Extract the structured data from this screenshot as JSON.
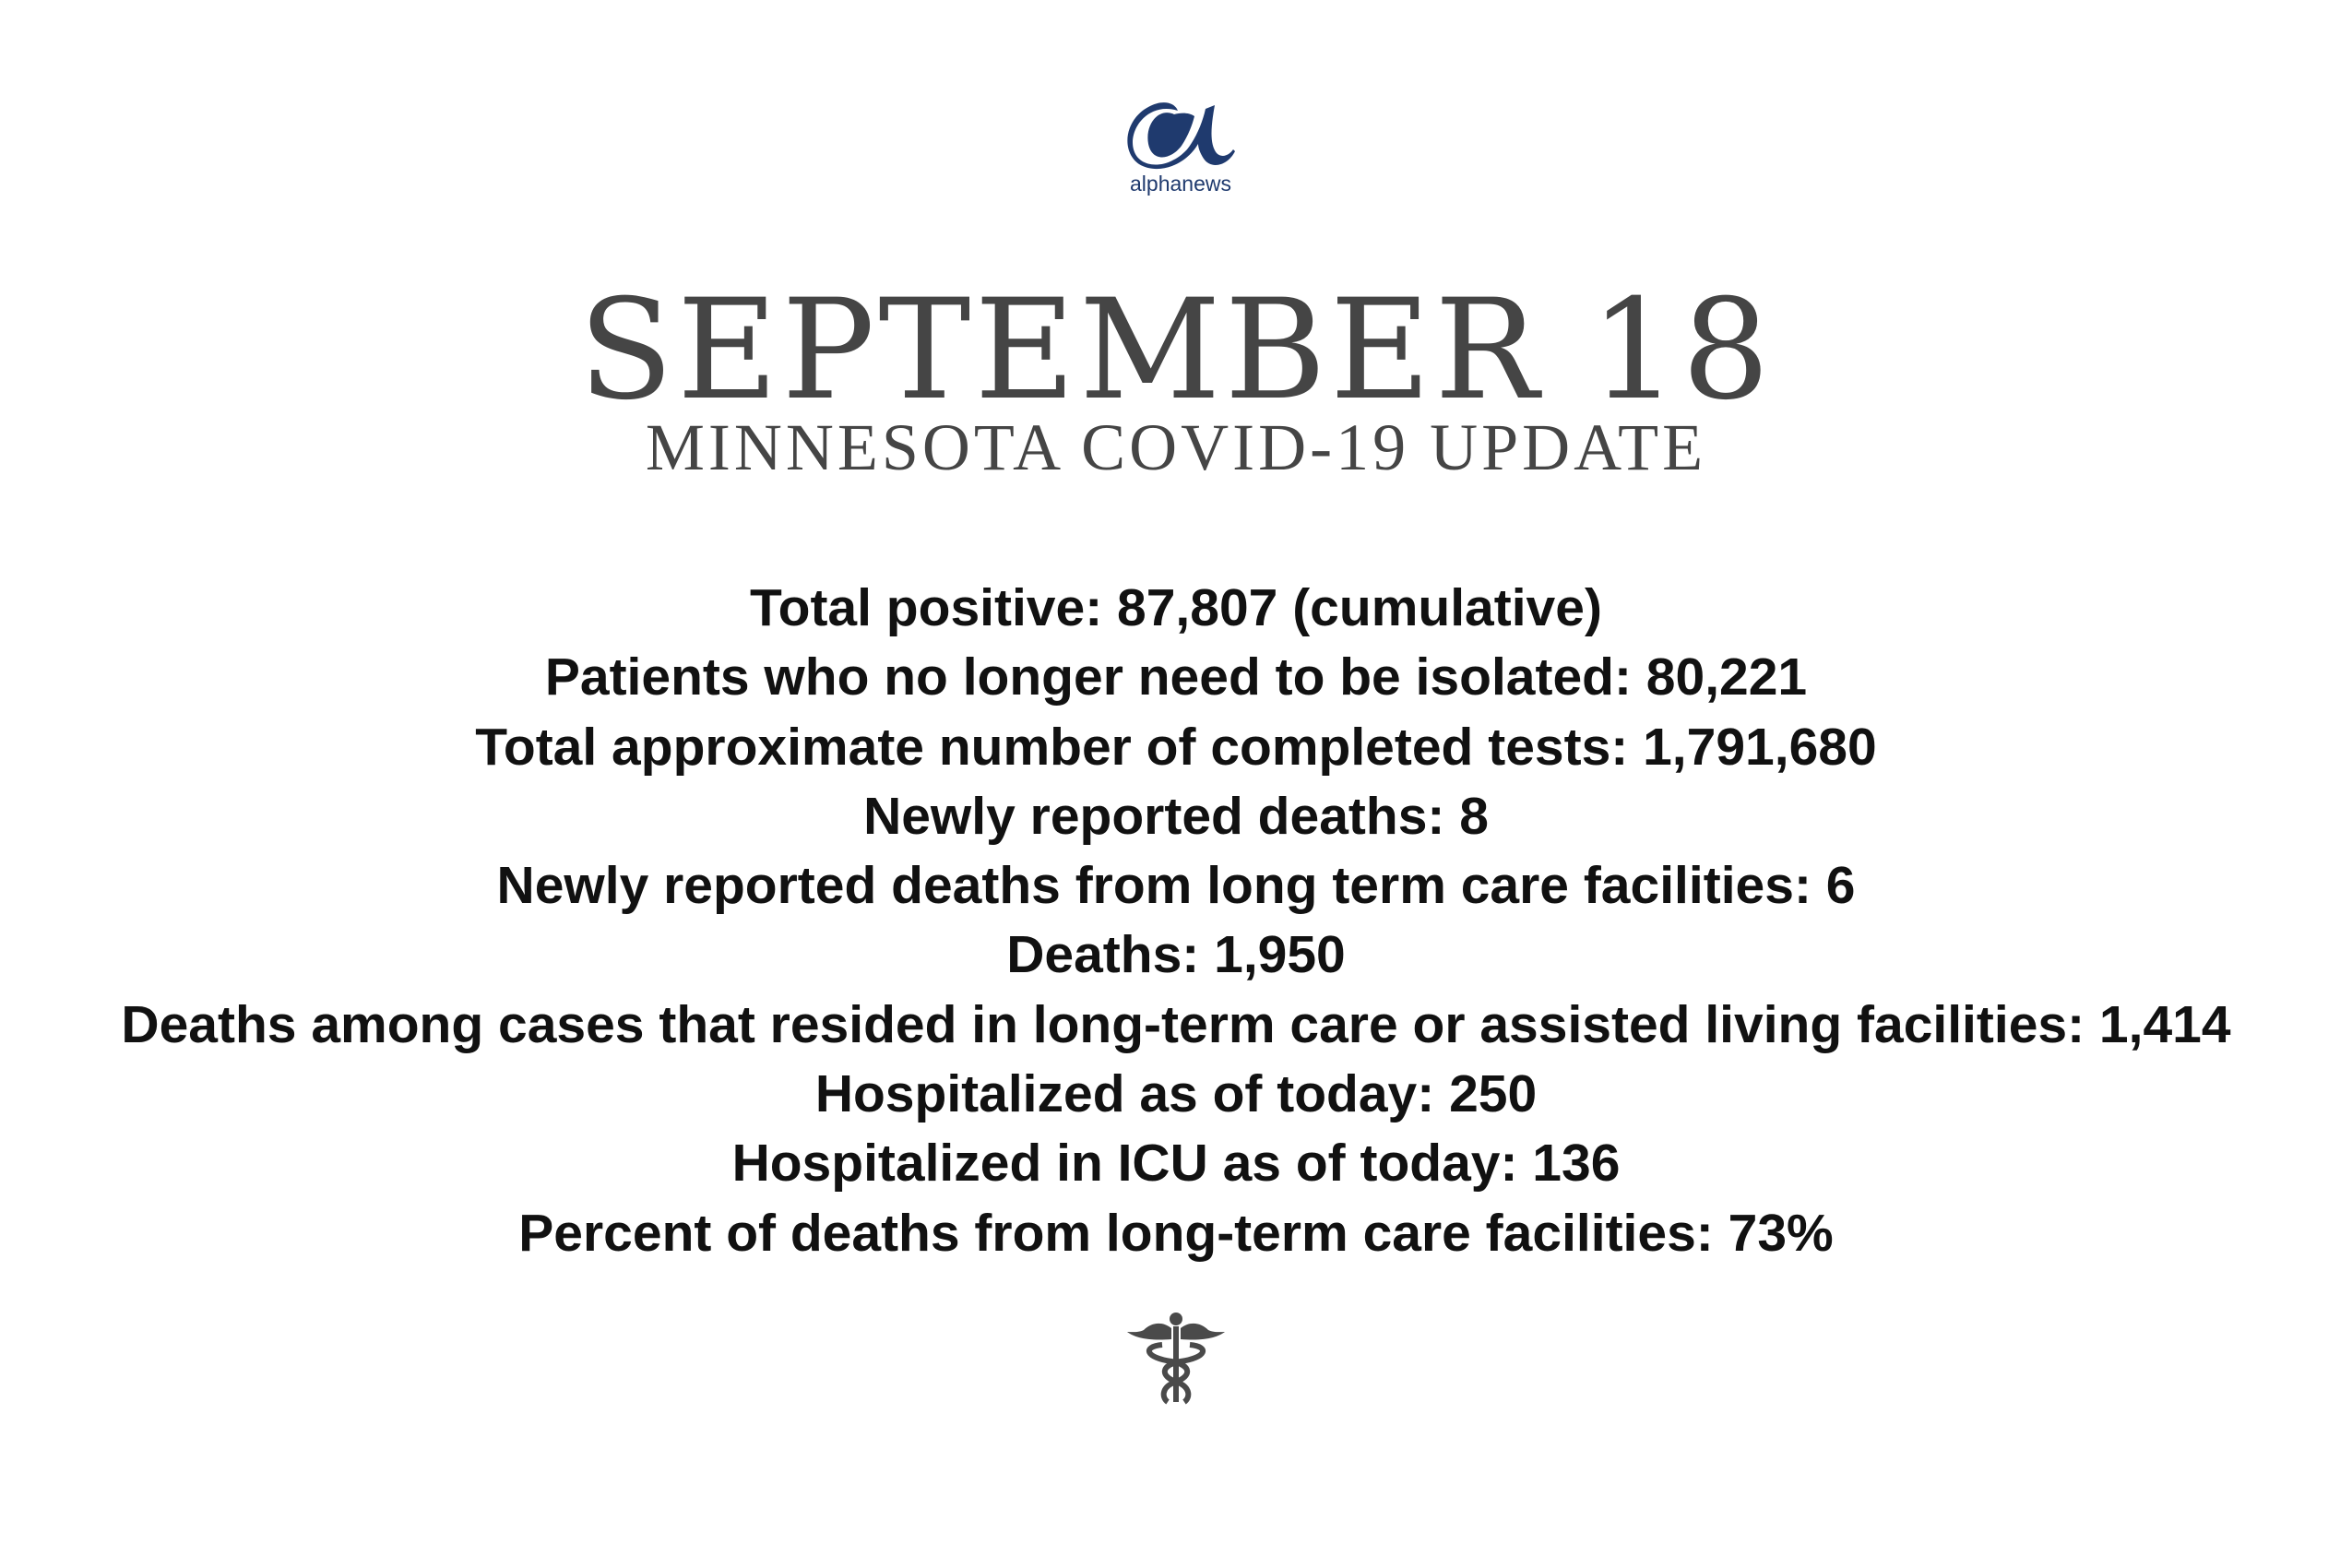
{
  "logo": {
    "brand_prefix": "alpha",
    "brand_suffix": "news",
    "color": "#1f3a6e"
  },
  "header": {
    "title": "SEPTEMBER 18",
    "subtitle": "MINNESOTA COVID-19 UPDATE"
  },
  "stats": [
    "Total positive: 87,807 (cumulative)",
    "Patients who no longer need to be isolated: 80,221",
    "Total approximate number of completed tests: 1,791,680",
    "Newly reported deaths: 8",
    "Newly reported deaths from long term care facilities: 6",
    "Deaths: 1,950",
    "Deaths among cases that resided in long-term care or assisted living facilities: 1,414",
    "Hospitalized as of today: 250",
    "Hospitalized in ICU as of today: 136",
    "Percent of deaths from long-term care facilities: 73%"
  ],
  "footer": {
    "icon": "caduceus-icon",
    "icon_color": "#4a4a4a"
  }
}
